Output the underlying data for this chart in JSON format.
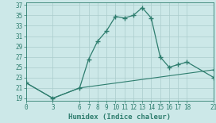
{
  "xlabel": "Humidex (Indice chaleur)",
  "background_color": "#cce8e8",
  "line_color": "#2e7d6e",
  "grid_color": "#aacccc",
  "curve1_x": [
    0,
    3,
    6,
    7,
    8,
    9,
    10,
    11,
    12,
    13,
    14,
    15,
    16,
    17,
    18,
    21
  ],
  "curve1_y": [
    22,
    19,
    21,
    26.5,
    30,
    32,
    34.8,
    34.5,
    35,
    36.5,
    34.5,
    27,
    25,
    25.5,
    26,
    23
  ],
  "curve2_x": [
    0,
    3,
    6,
    21
  ],
  "curve2_y": [
    22,
    19,
    21,
    24.5
  ],
  "yticks": [
    19,
    21,
    23,
    25,
    27,
    29,
    31,
    33,
    35,
    37
  ],
  "xticks": [
    0,
    3,
    6,
    7,
    8,
    9,
    10,
    11,
    12,
    13,
    14,
    15,
    16,
    17,
    18,
    21
  ],
  "xlim": [
    0,
    21
  ],
  "ylim": [
    18.5,
    37.5
  ]
}
